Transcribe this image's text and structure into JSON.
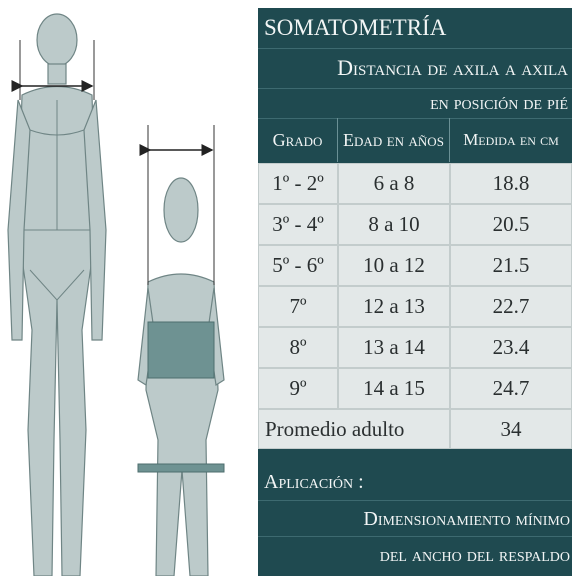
{
  "header": {
    "title": "SOMATOMETRÍA",
    "subtitle_lines": [
      "Distancia de axila a axila",
      "en posición de pié"
    ]
  },
  "table": {
    "columns": [
      "Grado",
      "Edad en años",
      "Medida en cm"
    ],
    "rows": [
      [
        "1º - 2º",
        "6 a 8",
        "18.8"
      ],
      [
        "3º - 4º",
        "8 a 10",
        "20.5"
      ],
      [
        "5º - 6º",
        "10 a 12",
        "21.5"
      ],
      [
        "7º",
        "12 a 13",
        "22.7"
      ],
      [
        "8º",
        "13 a 14",
        "23.4"
      ],
      [
        "9º",
        "14 a 15",
        "24.7"
      ]
    ],
    "footer_row": [
      "Promedio adulto",
      "34"
    ]
  },
  "application": {
    "label": "Aplicación :",
    "lines": [
      "Dimensionamiento mínimo",
      "del ancho del respaldo"
    ]
  }
}
